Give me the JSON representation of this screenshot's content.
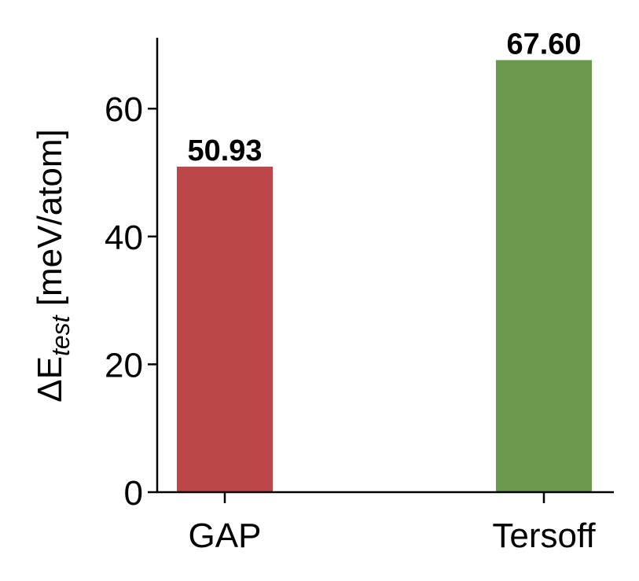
{
  "chart_data": {
    "type": "bar",
    "title": "",
    "xlabel": "",
    "ylabel": "ΔE_test [meV/atom]",
    "ylabel_parts": {
      "delta": "ΔE",
      "sub": "test",
      "unit": " [meV/atom]"
    },
    "categories": [
      "GAP",
      "Tersoff"
    ],
    "values": [
      50.93,
      67.6
    ],
    "value_labels": [
      "50.93",
      "67.60"
    ],
    "colors": [
      "#bc4749",
      "#6a994e"
    ],
    "yticks": [
      0,
      20,
      40,
      60
    ],
    "ytick_labels": [
      "0",
      "20",
      "40",
      "60"
    ],
    "ylim": [
      0,
      71
    ],
    "grid": false,
    "legend": null
  }
}
